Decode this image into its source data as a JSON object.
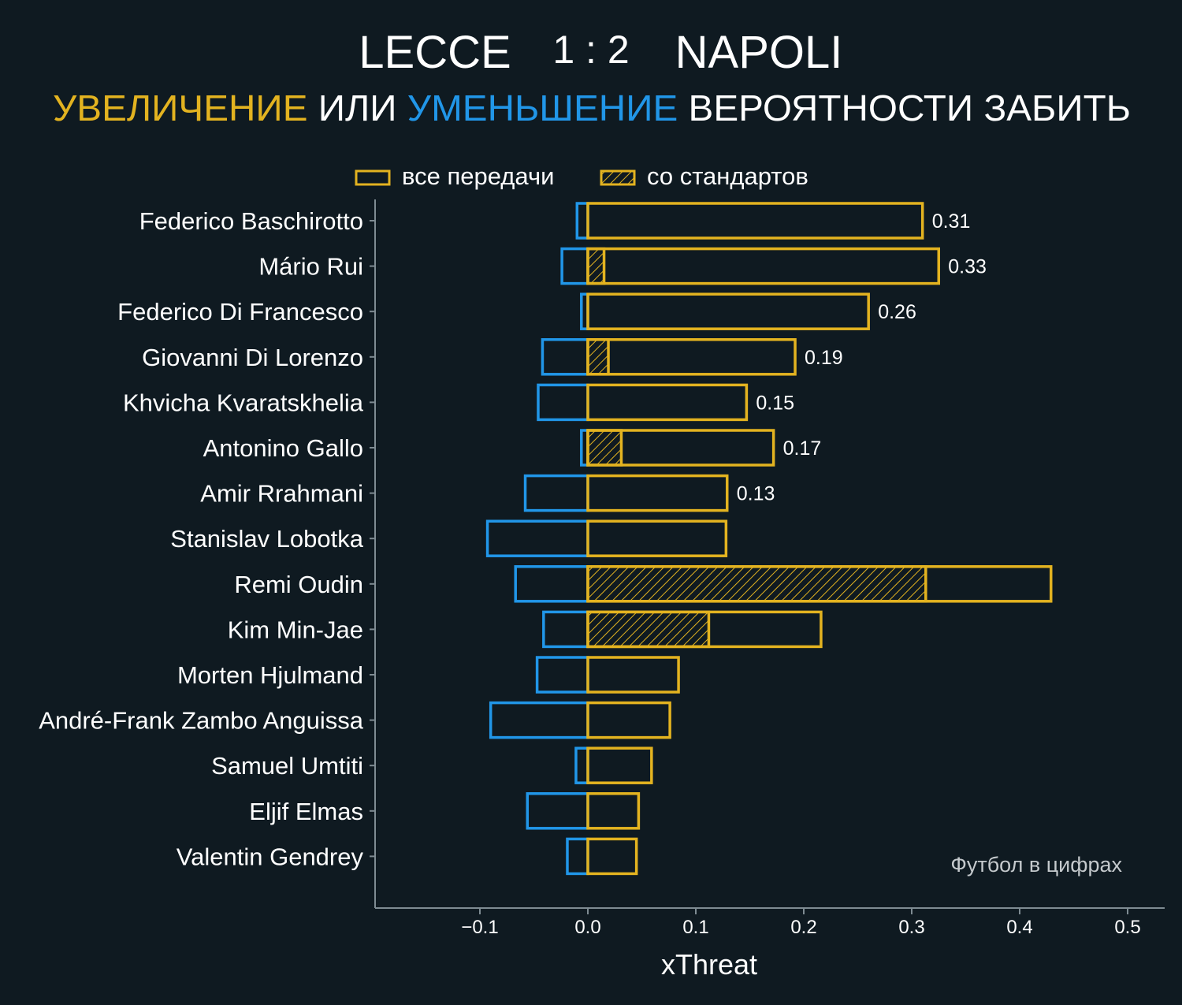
{
  "header": {
    "home_team": "LECCE",
    "score": "1 : 2",
    "away_team": "NAPOLI",
    "subtitle_increase": "УВЕЛИЧЕНИЕ",
    "subtitle_or": "ИЛИ",
    "subtitle_decrease": "УМЕНЬШЕНИЕ",
    "subtitle_rest": "ВЕРОЯТНОСТИ ЗАБИТЬ"
  },
  "legend": {
    "all_passes": "все передачи",
    "set_pieces": "со стандартов"
  },
  "watermark": "Футбол в цифрах",
  "colors": {
    "background": "#0f1a21",
    "increase": "#e3b320",
    "decrease": "#2196e8",
    "text": "#ffffff",
    "axis": "#7e8b92"
  },
  "chart_data": {
    "type": "bar",
    "orientation": "horizontal",
    "xlabel": "xThreat",
    "xlim": [
      -0.2,
      0.535
    ],
    "xticks": [
      -0.1,
      0.0,
      0.1,
      0.2,
      0.3,
      0.4,
      0.5
    ],
    "xtick_labels": [
      "−0.1",
      "0.0",
      "0.1",
      "0.2",
      "0.3",
      "0.4",
      "0.5"
    ],
    "legend_position": "top-center",
    "grid": false,
    "categories": [
      "Federico Baschirotto",
      "Mário Rui",
      "Federico Di Francesco",
      "Giovanni Di Lorenzo",
      "Khvicha Kvaratskhelia",
      "Antonino Gallo",
      "Amir Rrahmani",
      "Stanislav Lobotka",
      "Remi Oudin",
      "Kim Min-Jae",
      "Morten Hjulmand",
      "André-Frank Zambo Anguissa",
      "Samuel Umtiti",
      "Eljif Elmas",
      "Valentin Gendrey"
    ],
    "series": [
      {
        "name": "все передачи",
        "positive": [
          0.31,
          0.325,
          0.26,
          0.192,
          0.147,
          0.172,
          0.129,
          0.128,
          0.429,
          0.216,
          0.084,
          0.076,
          0.059,
          0.047,
          0.045
        ],
        "negative": [
          -0.01,
          -0.024,
          -0.006,
          -0.042,
          -0.046,
          -0.006,
          -0.058,
          -0.093,
          -0.067,
          -0.041,
          -0.047,
          -0.09,
          -0.011,
          -0.056,
          -0.019
        ]
      },
      {
        "name": "со стандартов",
        "values": [
          0.0,
          0.015,
          0.0,
          0.019,
          0.0,
          0.031,
          0.0,
          0.0,
          0.313,
          0.112,
          0.0,
          0.0,
          0.0,
          0.0,
          0.0
        ]
      }
    ],
    "value_labels": [
      "0.31",
      "0.33",
      "0.26",
      "0.19",
      "0.15",
      "0.17",
      "0.13",
      "",
      "",
      "",
      "",
      "",
      "",
      "",
      ""
    ]
  }
}
